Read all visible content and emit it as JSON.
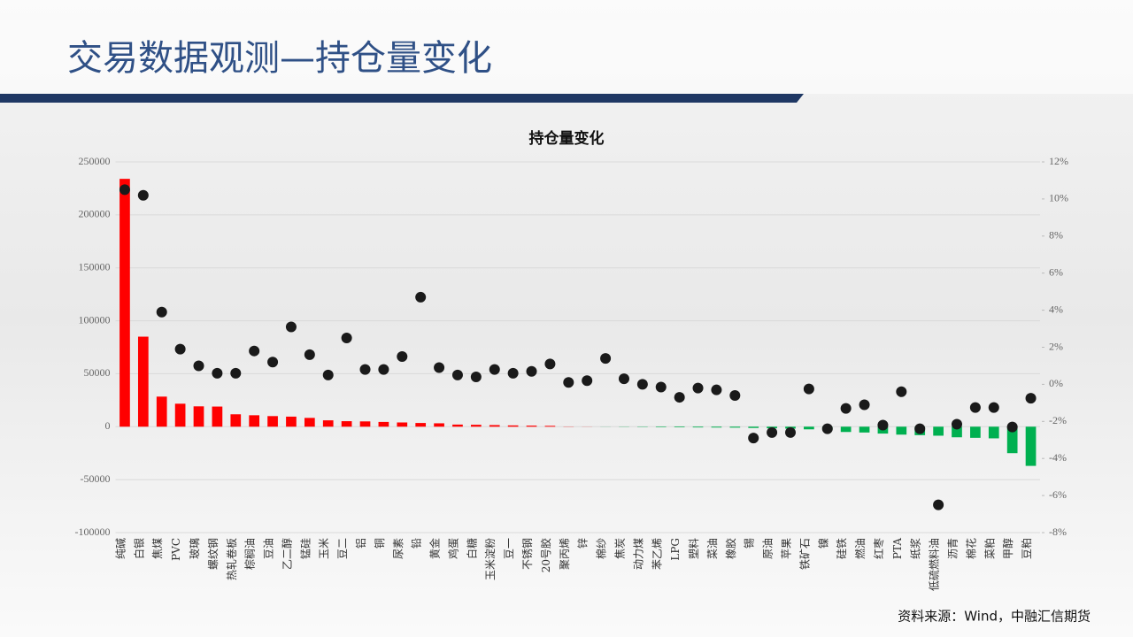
{
  "header": {
    "title": "交易数据观测—持仓量变化"
  },
  "footer": {
    "source": "资料来源：Wind，中融汇信期货"
  },
  "chart_data": {
    "type": "bar",
    "title": "持仓量变化",
    "categories": [
      "纯碱",
      "白银",
      "焦煤",
      "PVC",
      "玻璃",
      "螺纹钢",
      "热轧卷板",
      "棕榈油",
      "豆油",
      "乙二醇",
      "锰硅",
      "玉米",
      "豆二",
      "铝",
      "铜",
      "尿素",
      "铅",
      "黄金",
      "鸡蛋",
      "白糖",
      "玉米淀粉",
      "豆一",
      "不锈钢",
      "20号胶",
      "聚丙烯",
      "锌",
      "棉纱",
      "焦炭",
      "动力煤",
      "苯乙烯",
      "LPG",
      "塑料",
      "菜油",
      "橡胶",
      "锡",
      "原油",
      "苹果",
      "铁矿石",
      "镍",
      "硅铁",
      "燃油",
      "红枣",
      "PTA",
      "纸浆",
      "低硫燃料油",
      "沥青",
      "棉花",
      "菜粕",
      "甲醇",
      "豆粕"
    ],
    "series": [
      {
        "type": "bar",
        "positive_color": "#ff0000",
        "negative_color": "#00b050",
        "values": [
          234000,
          85000,
          28400,
          21700,
          19200,
          19000,
          11700,
          10800,
          10000,
          9500,
          8300,
          6000,
          5200,
          5000,
          4500,
          4000,
          3500,
          3200,
          2000,
          1800,
          1500,
          1200,
          1000,
          800,
          200,
          100,
          -100,
          -200,
          -300,
          -500,
          -600,
          -700,
          -800,
          -900,
          -1200,
          -1500,
          -1800,
          -2500,
          -3000,
          -5000,
          -5500,
          -6500,
          -7500,
          -8000,
          -8500,
          -10000,
          -10500,
          -11000,
          -25000,
          -37000
        ]
      },
      {
        "type": "scatter",
        "axis": "y2",
        "color": "#1a1a1a",
        "values": [
          10.5,
          10.2,
          3.9,
          1.9,
          1.0,
          0.6,
          0.6,
          1.8,
          1.2,
          3.1,
          1.6,
          0.5,
          2.5,
          0.8,
          0.8,
          1.5,
          4.7,
          0.9,
          0.5,
          0.4,
          0.8,
          0.6,
          0.7,
          1.1,
          0.1,
          0.2,
          1.4,
          0.3,
          0,
          -0.15,
          -0.7,
          -0.2,
          -0.3,
          -0.6,
          -2.9,
          -2.6,
          -2.6,
          -0.25,
          -2.4,
          -1.3,
          -1.1,
          -2.2,
          -0.4,
          -2.4,
          -6.5,
          -2.15,
          -1.25,
          -1.25,
          -2.3,
          -0.75
        ]
      }
    ],
    "ylim": [
      -100000,
      250000
    ],
    "yticks": [
      -100000,
      -50000,
      0,
      50000,
      100000,
      150000,
      200000,
      250000
    ],
    "y2lim": [
      -8,
      12
    ],
    "y2ticks": [
      {
        "value": -8,
        "label": "-8%"
      },
      {
        "value": -6,
        "label": "-6%"
      },
      {
        "value": -4,
        "label": "-4%"
      },
      {
        "value": -2,
        "label": "-2%"
      },
      {
        "value": 0,
        "label": "0%"
      },
      {
        "value": 2,
        "label": "2%"
      },
      {
        "value": 4,
        "label": "4%"
      },
      {
        "value": 6,
        "label": "6%"
      },
      {
        "value": 8,
        "label": "8%"
      },
      {
        "value": 10,
        "label": "10%"
      },
      {
        "value": 12,
        "label": "12%"
      }
    ],
    "grid": true
  }
}
